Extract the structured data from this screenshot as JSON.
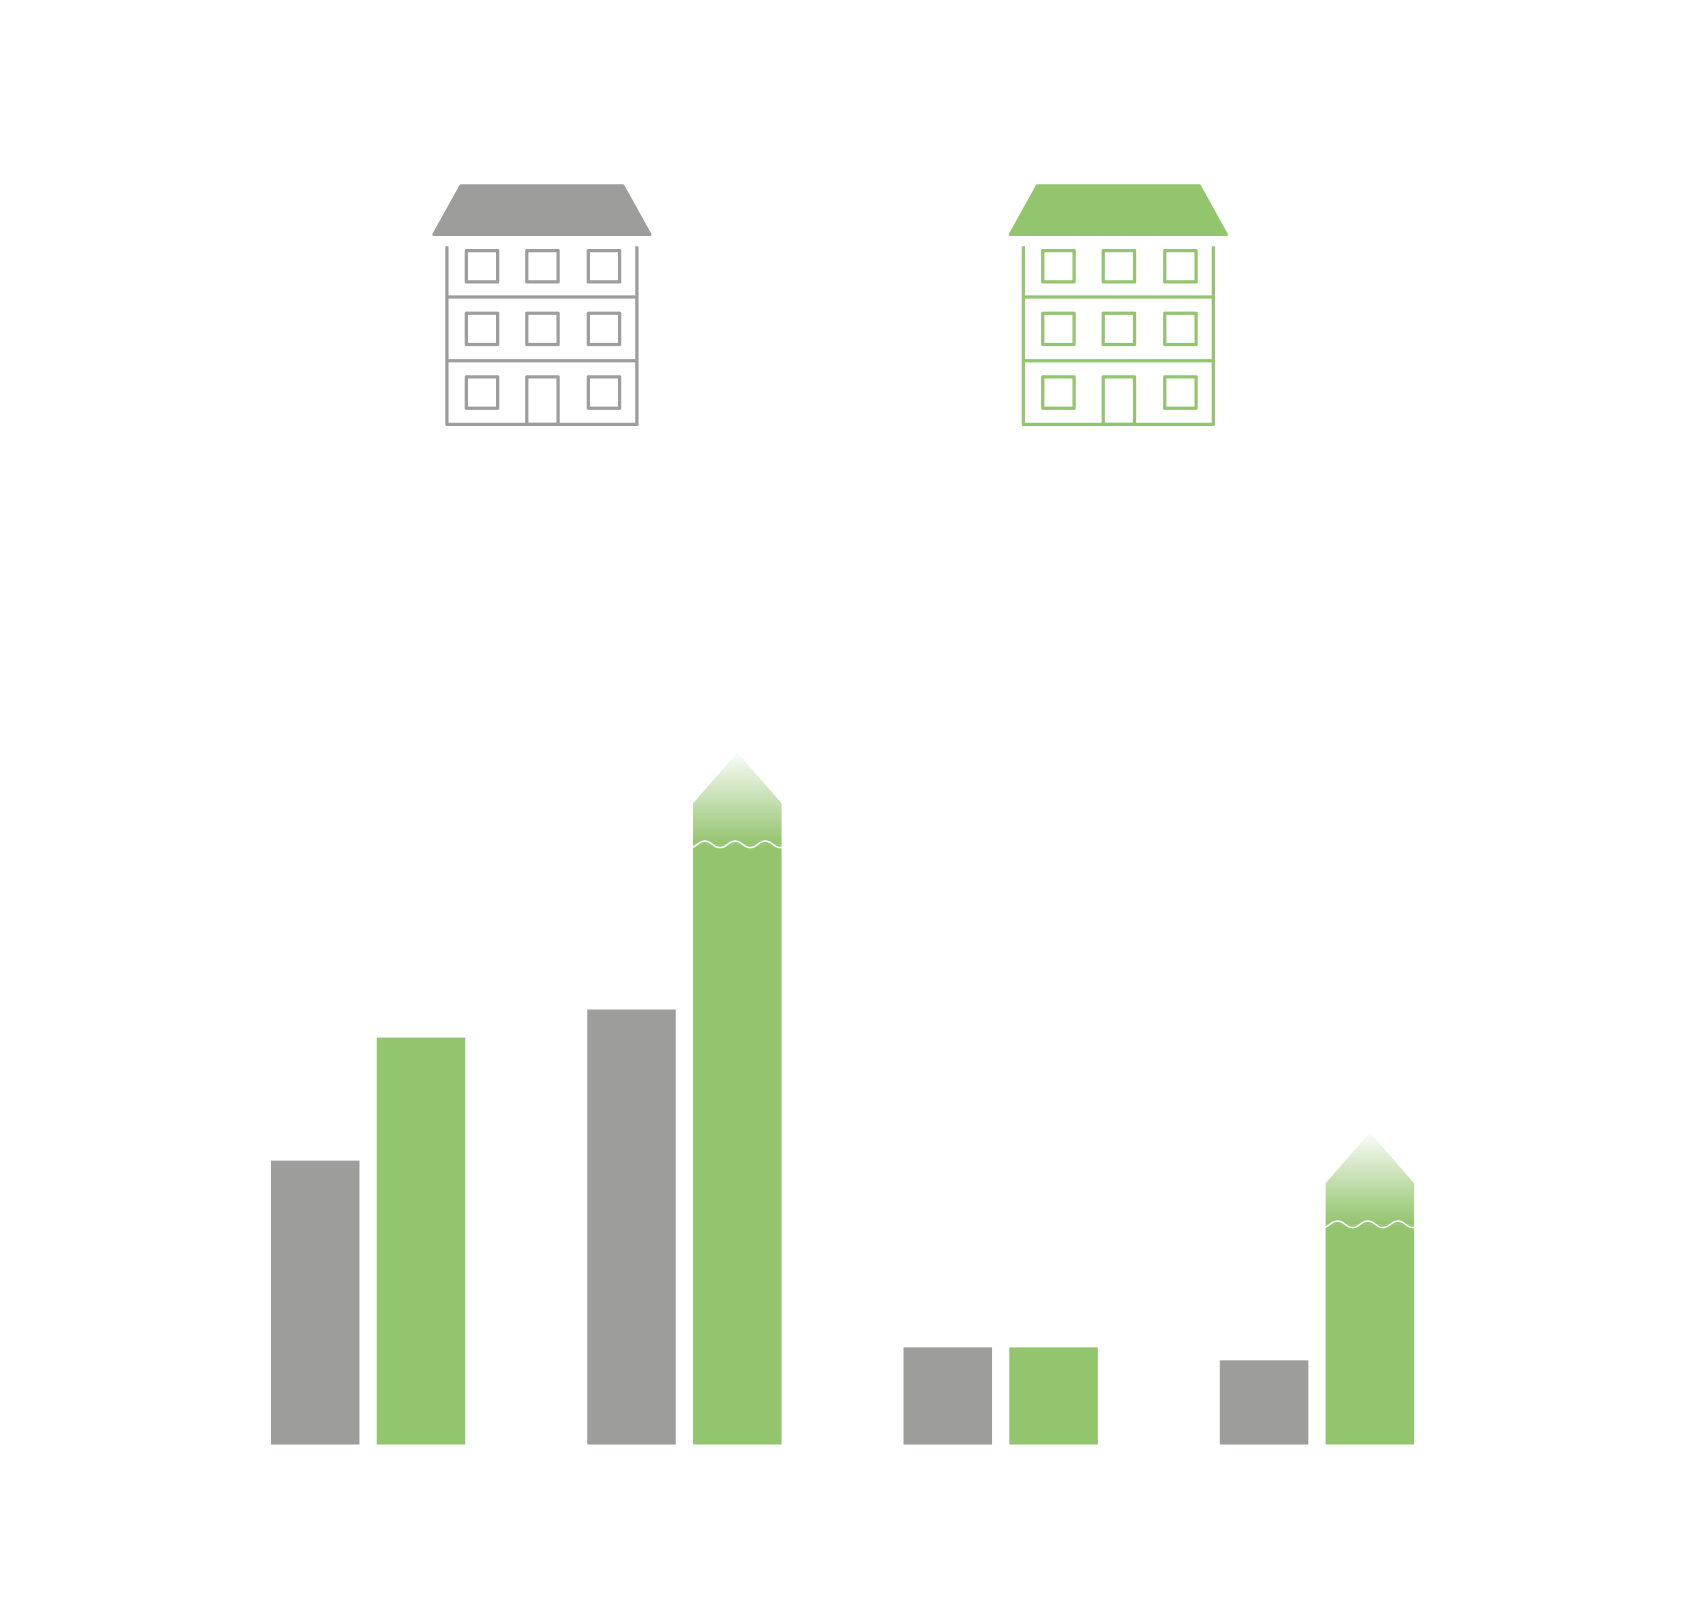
{
  "chart_data": {
    "type": "bar",
    "categories": [
      null,
      null,
      null,
      null
    ],
    "series": [
      {
        "color": "#9d9d9b",
        "values": [
          263,
          403,
          90,
          78
        ],
        "broken": [
          false,
          false,
          false,
          false
        ]
      },
      {
        "color": "#93c46e",
        "values": [
          377,
          641,
          90,
          289
        ],
        "broken": [
          false,
          true,
          false,
          true
        ]
      }
    ]
  }
}
